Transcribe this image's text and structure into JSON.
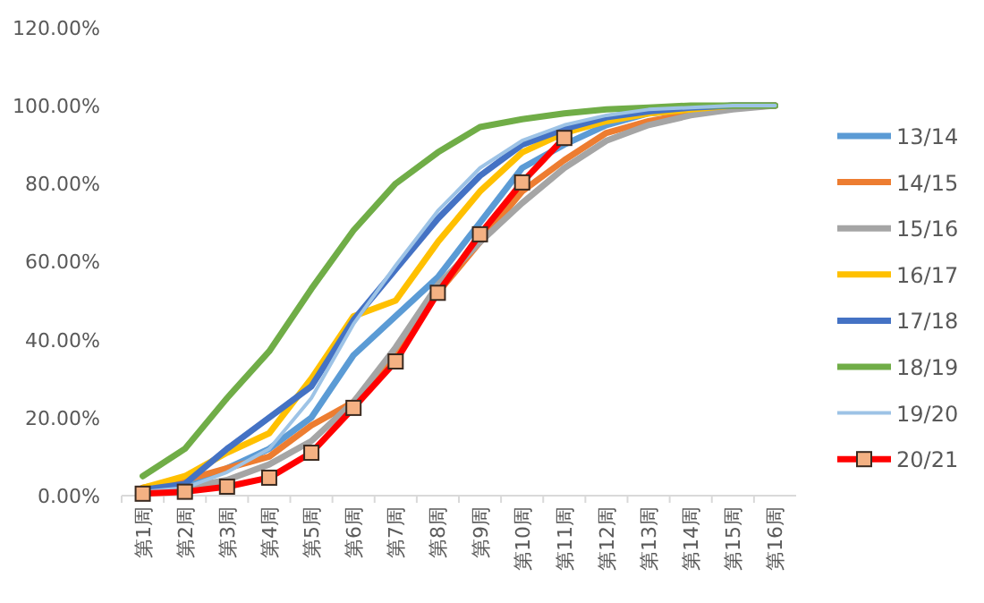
{
  "chart_data": {
    "type": "line",
    "categories": [
      "第1周",
      "第2周",
      "第3周",
      "第4周",
      "第5周",
      "第6周",
      "第7周",
      "第8周",
      "第9周",
      "第10周",
      "第11周",
      "第12周",
      "第13周",
      "第14周",
      "第15周",
      "第16周"
    ],
    "ylim": [
      0,
      120
    ],
    "yticks": [
      {
        "value": 0,
        "label": "0.00%"
      },
      {
        "value": 20,
        "label": "20.00%"
      },
      {
        "value": 40,
        "label": "40.00%"
      },
      {
        "value": 60,
        "label": "60.00%"
      },
      {
        "value": 80,
        "label": "80.00%"
      },
      {
        "value": 100,
        "label": "100.00%"
      },
      {
        "value": 120,
        "label": "120.00%"
      }
    ],
    "grid": false,
    "legend": "right",
    "marker": "none",
    "series": [
      {
        "name": "13/14",
        "color": "#5b9bd5",
        "values": [
          1,
          2,
          7,
          12,
          20,
          36,
          46,
          56,
          70,
          84,
          90,
          95,
          98,
          99,
          100,
          100
        ]
      },
      {
        "name": "14/15",
        "color": "#ed7d31",
        "values": [
          2,
          4,
          7,
          10,
          18,
          24,
          36,
          52,
          65,
          78,
          86,
          93,
          96,
          98,
          99.5,
          100
        ]
      },
      {
        "name": "15/16",
        "color": "#a5a5a5",
        "values": [
          1,
          2,
          4,
          8,
          14,
          24,
          38,
          54,
          65,
          75,
          84,
          91,
          95,
          97.5,
          99,
          100
        ]
      },
      {
        "name": "16/17",
        "color": "#ffc000",
        "values": [
          2,
          5,
          11,
          16,
          30,
          46,
          50,
          65,
          78,
          88,
          93,
          96,
          98,
          99,
          100,
          100
        ]
      },
      {
        "name": "17/18",
        "color": "#4472c4",
        "values": [
          1.5,
          3,
          12,
          20,
          28,
          45,
          58,
          71,
          82,
          90,
          94,
          97,
          98.5,
          99.5,
          100,
          100
        ]
      },
      {
        "name": "18/19",
        "color": "#70ad47",
        "values": [
          5,
          12,
          25,
          37,
          53,
          68,
          80,
          88,
          94.5,
          96.5,
          98,
          99,
          99.5,
          100,
          100,
          100
        ]
      },
      {
        "name": "19/20",
        "color": "#9dc3e6",
        "values": [
          1,
          2,
          6,
          12,
          25,
          44,
          59,
          73,
          84,
          91,
          95,
          97.5,
          99,
          99.5,
          100,
          100
        ]
      },
      {
        "name": "20/21",
        "color": "#ff0000",
        "marker": "square",
        "values": [
          0.5,
          1,
          2.3,
          4.6,
          11,
          22.5,
          34.4,
          52,
          67,
          80.3,
          91.7,
          null,
          null,
          null,
          null,
          null
        ]
      }
    ]
  }
}
